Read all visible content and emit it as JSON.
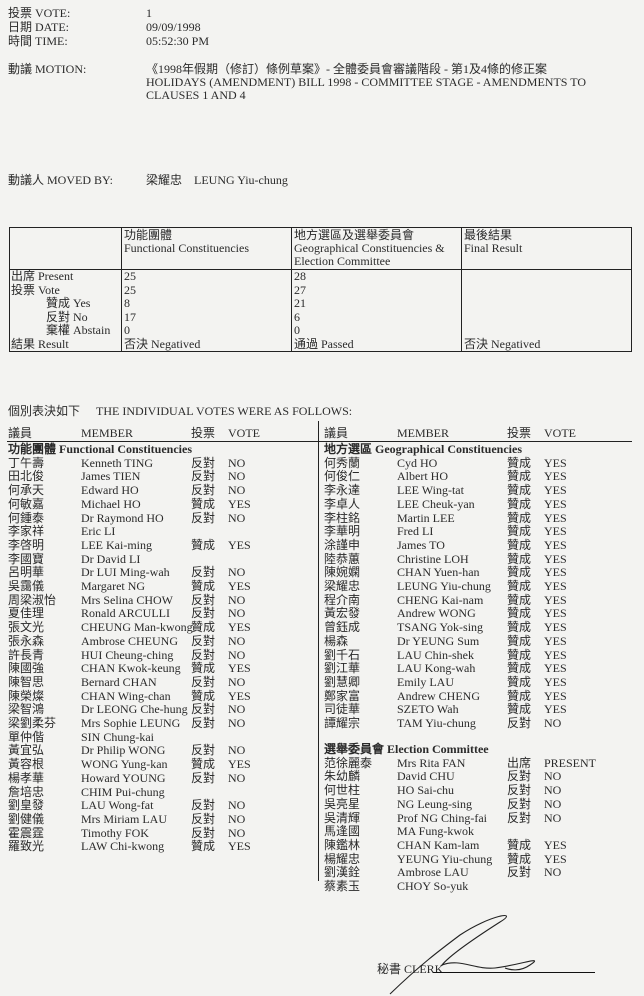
{
  "header": {
    "vote_label": "投票 VOTE:",
    "vote_value": "1",
    "date_label": "日期 DATE:",
    "date_value": "09/09/1998",
    "time_label": "時間 TIME:",
    "time_value": "05:52:30 PM",
    "motion_label": "動議 MOTION:",
    "motion_zh": "《1998年假期（修訂）條例草案》- 全體委員會審議階段 - 第1及4條的修正案",
    "motion_en_1": "HOLIDAYS (AMENDMENT) BILL 1998 - COMMITTEE STAGE - AMENDMENTS TO",
    "motion_en_2": "CLAUSES 1 AND 4",
    "moved_by_label": "動議人 MOVED BY:",
    "moved_by_value": "梁耀忠    LEUNG Yiu-chung"
  },
  "summary": {
    "col_headers": [
      {
        "zh": "功能團體",
        "en": "Functional Constituencies",
        "en2": ""
      },
      {
        "zh": "地方選區及選舉委員會",
        "en": "Geographical Constituencies &",
        "en2": "Election Committee"
      },
      {
        "zh": "最後結果",
        "en": "Final Result",
        "en2": ""
      }
    ],
    "rows": [
      {
        "label": "出席 Present",
        "fc": "25",
        "gc": "28",
        "final": ""
      },
      {
        "label": "投票 Vote",
        "fc": "25",
        "gc": "27",
        "final": ""
      },
      {
        "label": "贊成 Yes",
        "fc": "8",
        "gc": "21",
        "final": ""
      },
      {
        "label": "反對 No",
        "fc": "17",
        "gc": "6",
        "final": ""
      },
      {
        "label": "棄權 Abstain",
        "fc": "0",
        "gc": "0",
        "final": ""
      },
      {
        "label": "結果 Result",
        "fc": "否決 Negatived",
        "gc": "通過 Passed",
        "final": "否決 Negatived"
      }
    ]
  },
  "individual": {
    "intro_zh": "個別表決如下",
    "intro_en": "THE INDIVIDUAL VOTES WERE AS FOLLOWS:",
    "col_zh": "議員",
    "col_member": "MEMBER",
    "col_vote_zh": "投票",
    "col_vote": "VOTE",
    "functional": {
      "title": "功能團體 Functional Constituencies",
      "members": [
        [
          "丁午壽",
          "Kenneth TING",
          "反對",
          "NO"
        ],
        [
          "田北俊",
          "James TIEN",
          "反對",
          "NO"
        ],
        [
          "何承天",
          "Edward HO",
          "反對",
          "NO"
        ],
        [
          "何敏嘉",
          "Michael HO",
          "贊成",
          "YES"
        ],
        [
          "何鍾泰",
          "Dr Raymond HO",
          "反對",
          "NO"
        ],
        [
          "李家祥",
          "Eric LI",
          "",
          ""
        ],
        [
          "李啓明",
          "LEE Kai-ming",
          "贊成",
          "YES"
        ],
        [
          "李國寶",
          "Dr David LI",
          "",
          ""
        ],
        [
          "呂明華",
          "Dr LUI Ming-wah",
          "反對",
          "NO"
        ],
        [
          "吳靄儀",
          "Margaret NG",
          "贊成",
          "YES"
        ],
        [
          "周梁淑怡",
          "Mrs Selina CHOW",
          "反對",
          "NO"
        ],
        [
          "夏佳理",
          "Ronald ARCULLI",
          "反對",
          "NO"
        ],
        [
          "張文光",
          "CHEUNG Man-kwong",
          "贊成",
          "YES"
        ],
        [
          "張永森",
          "Ambrose CHEUNG",
          "反對",
          "NO"
        ],
        [
          "許長青",
          "HUI Cheung-ching",
          "反對",
          "NO"
        ],
        [
          "陳國強",
          "CHAN Kwok-keung",
          "贊成",
          "YES"
        ],
        [
          "陳智思",
          "Bernard CHAN",
          "反對",
          "NO"
        ],
        [
          "陳榮燦",
          "CHAN Wing-chan",
          "贊成",
          "YES"
        ],
        [
          "梁智鴻",
          "Dr LEONG Che-hung",
          "反對",
          "NO"
        ],
        [
          "梁劉柔芬",
          "Mrs Sophie LEUNG",
          "反對",
          "NO"
        ],
        [
          "單仲偕",
          "SIN Chung-kai",
          "",
          ""
        ],
        [
          "黃宜弘",
          "Dr Philip WONG",
          "反對",
          "NO"
        ],
        [
          "黃容根",
          "WONG Yung-kan",
          "贊成",
          "YES"
        ],
        [
          "楊孝華",
          "Howard YOUNG",
          "反對",
          "NO"
        ],
        [
          "詹培忠",
          "CHIM Pui-chung",
          "",
          ""
        ],
        [
          "劉皇發",
          "LAU Wong-fat",
          "反對",
          "NO"
        ],
        [
          "劉健儀",
          "Mrs Miriam LAU",
          "反對",
          "NO"
        ],
        [
          "霍震霆",
          "Timothy FOK",
          "反對",
          "NO"
        ],
        [
          "羅致光",
          "LAW Chi-kwong",
          "贊成",
          "YES"
        ]
      ]
    },
    "geographical": {
      "title": "地方選區 Geographical Constituencies",
      "members": [
        [
          "何秀蘭",
          "Cyd HO",
          "贊成",
          "YES"
        ],
        [
          "何俊仁",
          "Albert HO",
          "贊成",
          "YES"
        ],
        [
          "李永達",
          "LEE Wing-tat",
          "贊成",
          "YES"
        ],
        [
          "李卓人",
          "LEE Cheuk-yan",
          "贊成",
          "YES"
        ],
        [
          "李柱銘",
          "Martin LEE",
          "贊成",
          "YES"
        ],
        [
          "李華明",
          "Fred LI",
          "贊成",
          "YES"
        ],
        [
          "涂謹申",
          "James TO",
          "贊成",
          "YES"
        ],
        [
          "陸恭蕙",
          "Christine LOH",
          "贊成",
          "YES"
        ],
        [
          "陳婉嫻",
          "CHAN Yuen-han",
          "贊成",
          "YES"
        ],
        [
          "梁耀忠",
          "LEUNG Yiu-chung",
          "贊成",
          "YES"
        ],
        [
          "程介南",
          "CHENG Kai-nam",
          "贊成",
          "YES"
        ],
        [
          "黃宏發",
          "Andrew WONG",
          "贊成",
          "YES"
        ],
        [
          "曾鈺成",
          "TSANG Yok-sing",
          "贊成",
          "YES"
        ],
        [
          "楊森",
          "Dr YEUNG Sum",
          "贊成",
          "YES"
        ],
        [
          "劉千石",
          "LAU Chin-shek",
          "贊成",
          "YES"
        ],
        [
          "劉江華",
          "LAU Kong-wah",
          "贊成",
          "YES"
        ],
        [
          "劉慧卿",
          "Emily LAU",
          "贊成",
          "YES"
        ],
        [
          "鄭家富",
          "Andrew CHENG",
          "贊成",
          "YES"
        ],
        [
          "司徒華",
          "SZETO Wah",
          "贊成",
          "YES"
        ],
        [
          "譚耀宗",
          "TAM Yiu-chung",
          "反對",
          "NO"
        ]
      ]
    },
    "election": {
      "title": "選舉委員會 Election Committee",
      "members": [
        [
          "范徐麗泰",
          "Mrs Rita FAN",
          "出席",
          "PRESENT"
        ],
        [
          "朱幼麟",
          "David CHU",
          "反對",
          "NO"
        ],
        [
          "何世柱",
          "HO Sai-chu",
          "反對",
          "NO"
        ],
        [
          "吳亮星",
          "NG Leung-sing",
          "反對",
          "NO"
        ],
        [
          "吳清輝",
          "Prof NG Ching-fai",
          "反對",
          "NO"
        ],
        [
          "馬逢國",
          "MA Fung-kwok",
          "",
          ""
        ],
        [
          "陳鑑林",
          "CHAN Kam-lam",
          "贊成",
          "YES"
        ],
        [
          "楊耀忠",
          "YEUNG Yiu-chung",
          "贊成",
          "YES"
        ],
        [
          "劉漢銓",
          "Ambrose LAU",
          "反對",
          "NO"
        ],
        [
          "蔡素玉",
          "CHOY So-yuk",
          "",
          ""
        ]
      ]
    }
  },
  "footer": {
    "clerk_label": "秘書 CLERK"
  }
}
